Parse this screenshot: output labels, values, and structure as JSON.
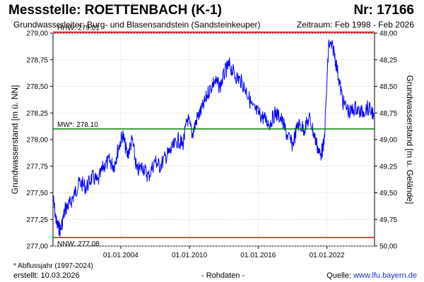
{
  "header": {
    "title": "Messstelle: ROETTENBACH (K-1)",
    "number": "Nr: 17166",
    "aquifer": "Grundwasserleiter:  Burg- und Blasensandstein (Sandsteinkeuper)",
    "period": "Zeitraum: Feb 1998 - Feb 2026"
  },
  "footer": {
    "footnote": "* Abflussjahr (1997-2024)",
    "created": "erstellt:  10.03.2026",
    "center_note": "- Rohdaten -",
    "source_label": "Quelle: ",
    "source_url": "www.lfu.bayern.de"
  },
  "colors": {
    "series": "#0000ff",
    "hhw_line": "#ff0000",
    "nnw_line": "#ff0000",
    "mw_line": "#008000",
    "grid": "#d0d0d0"
  },
  "chart_data": {
    "type": "line",
    "ylabel_left": "Grundwasserstand [m ü. NN]",
    "ylabel_right": "Grundwasserstand [m u. Gelände]",
    "ylim_left": [
      277.0,
      279.0
    ],
    "ylim_right_inverted": [
      50.0,
      48.0
    ],
    "right_axis_offset": 327.0,
    "xlim": [
      "1998-02-01",
      "2026-02-28"
    ],
    "yticks_left": [
      "279,00",
      "278,75",
      "278,50",
      "278,25",
      "278,00",
      "277,75",
      "277,50",
      "277,25",
      "277,00"
    ],
    "yticks_right": [
      "48,00",
      "48,25",
      "48,50",
      "48,75",
      "49,00",
      "49,25",
      "49,50",
      "49,75",
      "50,00"
    ],
    "xticks": [
      {
        "date": "2004-01-01",
        "label": "01.01.2004"
      },
      {
        "date": "2010-01-01",
        "label": "01.01.2010"
      },
      {
        "date": "2016-01-01",
        "label": "01.01.2016"
      },
      {
        "date": "2022-01-01",
        "label": "01.01.2022"
      }
    ],
    "grid": true,
    "reference_lines": [
      {
        "name": "HHW",
        "label": "HHW: 279.01",
        "value": 279.01
      },
      {
        "name": "MW*",
        "label": "MW*: 278.10",
        "value": 278.1
      },
      {
        "name": "NNW",
        "label": "NNW: 277.08",
        "value": 277.08
      }
    ],
    "series": [
      {
        "x": [
          "1998-02-01",
          "1998-06-01",
          "1998-10-01",
          "1999-03-01",
          "1999-08-01",
          "2000-01-01",
          "2000-06-01",
          "2001-01-01",
          "2001-07-01",
          "2002-01-01",
          "2002-07-01",
          "2003-01-01",
          "2003-06-01",
          "2003-10-01",
          "2004-03-01",
          "2004-08-01",
          "2005-01-01",
          "2005-06-01",
          "2005-12-01",
          "2006-06-01",
          "2007-01-01",
          "2007-06-01",
          "2008-01-01",
          "2008-06-01",
          "2009-01-01",
          "2009-06-01",
          "2009-11-01",
          "2010-04-01",
          "2010-09-01",
          "2011-03-01",
          "2011-09-01",
          "2012-03-01",
          "2012-09-01",
          "2013-03-01",
          "2013-07-01",
          "2014-01-01",
          "2014-07-01",
          "2015-01-01",
          "2015-07-01",
          "2016-01-01",
          "2016-07-01",
          "2017-01-01",
          "2017-07-01",
          "2018-01-01",
          "2018-07-01",
          "2019-01-01",
          "2019-07-01",
          "2020-01-01",
          "2020-07-01",
          "2021-01-01",
          "2021-06-01",
          "2021-10-01",
          "2022-03-01",
          "2022-08-01",
          "2023-01-01",
          "2023-06-01",
          "2024-01-01",
          "2024-07-01",
          "2025-01-01",
          "2025-07-01",
          "2026-02-01"
        ],
        "values": [
          277.45,
          277.2,
          277.15,
          277.35,
          277.4,
          277.5,
          277.6,
          277.55,
          277.65,
          277.6,
          277.75,
          277.8,
          277.75,
          277.9,
          278.05,
          277.85,
          278.0,
          277.7,
          277.75,
          277.65,
          277.8,
          277.75,
          277.85,
          277.9,
          278.0,
          277.95,
          278.2,
          278.05,
          278.2,
          278.3,
          278.45,
          278.55,
          278.5,
          278.65,
          278.7,
          278.6,
          278.55,
          278.45,
          278.3,
          278.25,
          278.2,
          278.15,
          278.25,
          278.2,
          278.05,
          277.95,
          278.15,
          278.1,
          278.2,
          278.0,
          277.85,
          277.95,
          278.9,
          278.85,
          278.6,
          278.35,
          278.25,
          278.3,
          278.25,
          278.3,
          278.25
        ]
      }
    ]
  }
}
